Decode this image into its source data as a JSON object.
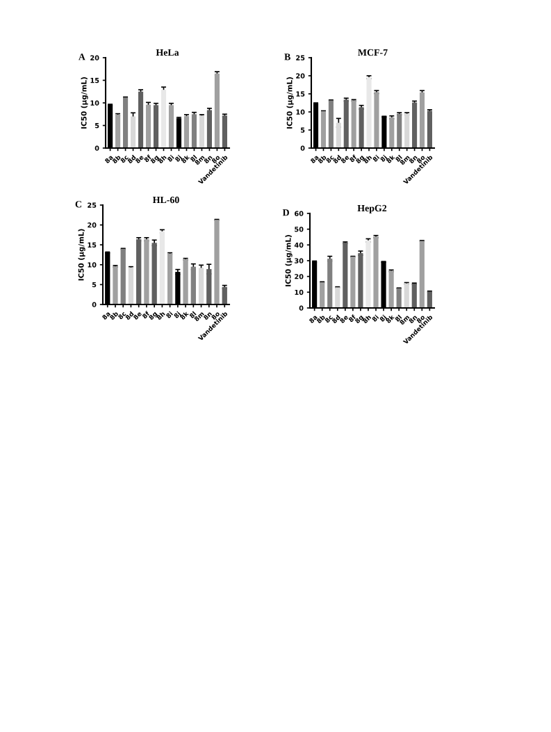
{
  "chart_data": [
    {
      "type": "bar",
      "title": "HeLa",
      "ylabel": "IC50 (μg/mL)",
      "annotations": [
        "A"
      ],
      "categories": [
        "8a",
        "8b",
        "8c",
        "8d",
        "8e",
        "8f",
        "8g",
        "8h",
        "8i",
        "8j",
        "8k",
        "8l",
        "8m",
        "8n",
        "8o",
        "Vandetinib"
      ],
      "values": [
        9.6,
        7.4,
        11.2,
        7.0,
        12.5,
        9.6,
        9.5,
        12.9,
        9.5,
        6.6,
        7.1,
        7.5,
        7.2,
        8.4,
        16.5,
        7.2
      ],
      "errors": [
        0.1,
        0.2,
        0.1,
        0.8,
        0.4,
        0.5,
        0.4,
        0.6,
        0.4,
        0.2,
        0.3,
        0.4,
        0.2,
        0.4,
        0.4,
        0.3
      ],
      "colors": [
        "#000000",
        "#a0a0a0",
        "#808080",
        "#d8d8d8",
        "#606060",
        "#a0a0a0",
        "#606060",
        "#e8e8e8",
        "#a0a0a0",
        "#000000",
        "#a0a0a0",
        "#808080",
        "#d8d8d8",
        "#606060",
        "#a0a0a0",
        "#606060"
      ],
      "ylim": [
        0,
        20
      ],
      "yticks": [
        0,
        5,
        10,
        15,
        20
      ],
      "grid": false,
      "legend": false
    },
    {
      "type": "bar",
      "title": "MCF-7",
      "ylabel": "IC50 (μg/mL)",
      "annotations": [
        "B"
      ],
      "categories": [
        "8a",
        "8b",
        "8c",
        "8d",
        "8e",
        "8f",
        "8g",
        "8h",
        "8i",
        "8j",
        "8k",
        "8l",
        "8m",
        "8n",
        "8o",
        "Vandetinib"
      ],
      "values": [
        12.4,
        10.2,
        13.2,
        7.0,
        13.4,
        13.2,
        11.3,
        19.6,
        15.5,
        8.7,
        8.5,
        9.5,
        9.5,
        12.6,
        15.4,
        10.3
      ],
      "errors": [
        0.1,
        0.1,
        0.1,
        1.2,
        0.4,
        0.2,
        0.5,
        0.4,
        0.4,
        0.1,
        0.4,
        0.3,
        0.3,
        0.4,
        0.5,
        0.3
      ],
      "colors": [
        "#000000",
        "#a0a0a0",
        "#808080",
        "#d8d8d8",
        "#606060",
        "#a0a0a0",
        "#606060",
        "#e8e8e8",
        "#a0a0a0",
        "#000000",
        "#a0a0a0",
        "#808080",
        "#d8d8d8",
        "#606060",
        "#a0a0a0",
        "#606060"
      ],
      "ylim": [
        0,
        25
      ],
      "yticks": [
        0,
        5,
        10,
        15,
        20,
        25
      ],
      "grid": false,
      "legend": false
    },
    {
      "type": "bar",
      "title": "HL-60",
      "ylabel": "IC50 (μg/mL)",
      "annotations": [
        "C"
      ],
      "categories": [
        "8a",
        "8b",
        "8c",
        "8d",
        "8e",
        "8f",
        "8g",
        "8h",
        "8i",
        "8j",
        "8k",
        "8l",
        "8m",
        "8n",
        "8o",
        "Vandetinib"
      ],
      "values": [
        13.1,
        9.6,
        14.0,
        9.3,
        16.4,
        16.4,
        15.5,
        18.4,
        12.8,
        8.2,
        11.4,
        9.5,
        9.2,
        8.9,
        21.3,
        4.4
      ],
      "errors": [
        0.1,
        0.2,
        0.1,
        0.2,
        0.4,
        0.4,
        0.7,
        0.4,
        0.2,
        0.6,
        0.2,
        0.7,
        0.7,
        1.2,
        0.1,
        0.4
      ],
      "colors": [
        "#000000",
        "#a0a0a0",
        "#808080",
        "#d8d8d8",
        "#606060",
        "#a0a0a0",
        "#606060",
        "#e8e8e8",
        "#a0a0a0",
        "#000000",
        "#a0a0a0",
        "#808080",
        "#d8d8d8",
        "#606060",
        "#a0a0a0",
        "#606060"
      ],
      "ylim": [
        0,
        25
      ],
      "yticks": [
        0,
        5,
        10,
        15,
        20,
        25
      ],
      "grid": false,
      "legend": false
    },
    {
      "type": "bar",
      "title": "HepG2",
      "ylabel": "IC50 (μg/mL)",
      "annotations": [
        "D"
      ],
      "categories": [
        "8a",
        "8b",
        "8c",
        "8d",
        "8e",
        "8f",
        "8g",
        "8h",
        "8i",
        "8j",
        "8k",
        "8l",
        "8m",
        "8n",
        "8o",
        "Vandetinib"
      ],
      "values": [
        29.5,
        16.3,
        31.3,
        13.1,
        41.4,
        32.6,
        34.8,
        42.9,
        45.3,
        29.3,
        23.6,
        12.5,
        15.6,
        15.4,
        42.5,
        10.4
      ],
      "errors": [
        0.3,
        0.3,
        1.5,
        0.3,
        0.5,
        0.2,
        1.3,
        1.0,
        0.7,
        0.2,
        0.5,
        0.2,
        0.5,
        0.4,
        0.3,
        0.3
      ],
      "colors": [
        "#000000",
        "#a0a0a0",
        "#808080",
        "#d8d8d8",
        "#606060",
        "#a0a0a0",
        "#606060",
        "#e8e8e8",
        "#a0a0a0",
        "#000000",
        "#a0a0a0",
        "#808080",
        "#d8d8d8",
        "#606060",
        "#a0a0a0",
        "#606060"
      ],
      "ylim": [
        0,
        60
      ],
      "yticks": [
        0,
        10,
        20,
        30,
        40,
        50,
        60
      ],
      "grid": false,
      "legend": false
    }
  ]
}
